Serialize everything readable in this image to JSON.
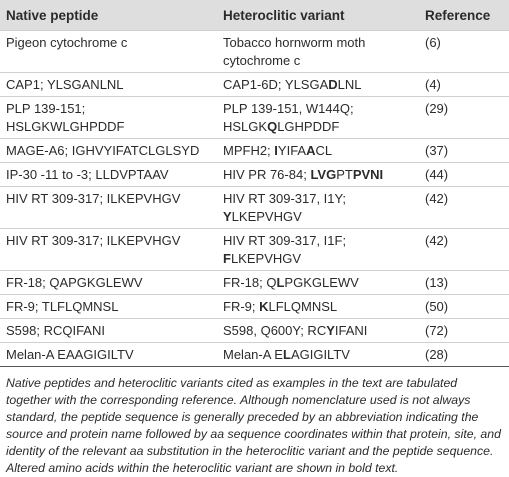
{
  "table": {
    "headers": [
      "Native peptide",
      "Heteroclitic variant",
      "Reference"
    ],
    "rows": [
      {
        "native": [
          "Pigeon cytochrome c"
        ],
        "variant": [
          [
            {
              "text": "Tobacco hornworm moth",
              "bold": false
            }
          ],
          [
            {
              "text": "cytochrome c",
              "bold": false
            }
          ]
        ],
        "reference": "(6)"
      },
      {
        "native": [
          "CAP1; YLSGANLNL"
        ],
        "variant": [
          [
            {
              "text": "CAP1-6D; YLSGA",
              "bold": false
            },
            {
              "text": "D",
              "bold": true
            },
            {
              "text": "LNL",
              "bold": false
            }
          ]
        ],
        "reference": "(4)"
      },
      {
        "native": [
          "PLP 139-151;",
          "HSLGKWLGHPDDF"
        ],
        "variant": [
          [
            {
              "text": "PLP 139-151, W144Q;",
              "bold": false
            }
          ],
          [
            {
              "text": "HSLGK",
              "bold": false
            },
            {
              "text": "Q",
              "bold": true
            },
            {
              "text": "LGHPDDF",
              "bold": false
            }
          ]
        ],
        "reference": "(29)"
      },
      {
        "native": [
          "MAGE-A6; IGHVYIFATCLGLSYD"
        ],
        "variant": [
          [
            {
              "text": "MPFH2; ",
              "bold": false
            },
            {
              "text": "I",
              "bold": true
            },
            {
              "text": "YIFA",
              "bold": false
            },
            {
              "text": "A",
              "bold": true
            },
            {
              "text": "CL",
              "bold": false
            }
          ]
        ],
        "reference": "(37)"
      },
      {
        "native": [
          "IP-30 -11 to -3; LLDVPTAAV"
        ],
        "variant": [
          [
            {
              "text": "HIV PR 76-84; ",
              "bold": false
            },
            {
              "text": "LVG",
              "bold": true
            },
            {
              "text": "PT",
              "bold": false
            },
            {
              "text": "PVNI",
              "bold": true
            }
          ]
        ],
        "reference": "(44)"
      },
      {
        "native": [
          "HIV RT 309-317; ILKEPVHGV"
        ],
        "variant": [
          [
            {
              "text": "HIV RT 309-317, I1Y;",
              "bold": false
            }
          ],
          [
            {
              "text": "Y",
              "bold": true
            },
            {
              "text": "LKEPVHGV",
              "bold": false
            }
          ]
        ],
        "reference": "(42)"
      },
      {
        "native": [
          "HIV RT 309-317; ILKEPVHGV"
        ],
        "variant": [
          [
            {
              "text": "HIV RT 309-317, I1F;",
              "bold": false
            }
          ],
          [
            {
              "text": "F",
              "bold": true
            },
            {
              "text": "LKEPVHGV",
              "bold": false
            }
          ]
        ],
        "reference": "(42)"
      },
      {
        "native": [
          "FR-18; QAPGKGLEWV"
        ],
        "variant": [
          [
            {
              "text": "FR-18; Q",
              "bold": false
            },
            {
              "text": "L",
              "bold": true
            },
            {
              "text": "PGKGLEWV",
              "bold": false
            }
          ]
        ],
        "reference": "(13)"
      },
      {
        "native": [
          "FR-9; TLFLQMNSL"
        ],
        "variant": [
          [
            {
              "text": "FR-9; ",
              "bold": false
            },
            {
              "text": "K",
              "bold": true
            },
            {
              "text": "LFLQMNSL",
              "bold": false
            }
          ]
        ],
        "reference": "(50)"
      },
      {
        "native": [
          "S598; RCQIFANI"
        ],
        "variant": [
          [
            {
              "text": "S598, Q600Y; RC",
              "bold": false
            },
            {
              "text": "Y",
              "bold": true
            },
            {
              "text": "IFANI",
              "bold": false
            }
          ]
        ],
        "reference": "(72)"
      },
      {
        "native": [
          "Melan-A EAAGIGILTV"
        ],
        "variant": [
          [
            {
              "text": "Melan-A E",
              "bold": false
            },
            {
              "text": "L",
              "bold": true
            },
            {
              "text": "AGIGILTV",
              "bold": false
            }
          ]
        ],
        "reference": "(28)"
      }
    ],
    "caption": "Native peptides and heteroclitic variants cited as examples in the text are tabulated together with the corresponding reference. Although nomenclature used is not always standard, the peptide sequence is generally preceded by an abbreviation indicating the source and protein name followed by aa sequence coordinates within that protein, site, and identity of the relevant aa substitution in the heteroclitic variant and the peptide sequence. Altered amino acids within the heteroclitic variant are shown in bold text."
  }
}
